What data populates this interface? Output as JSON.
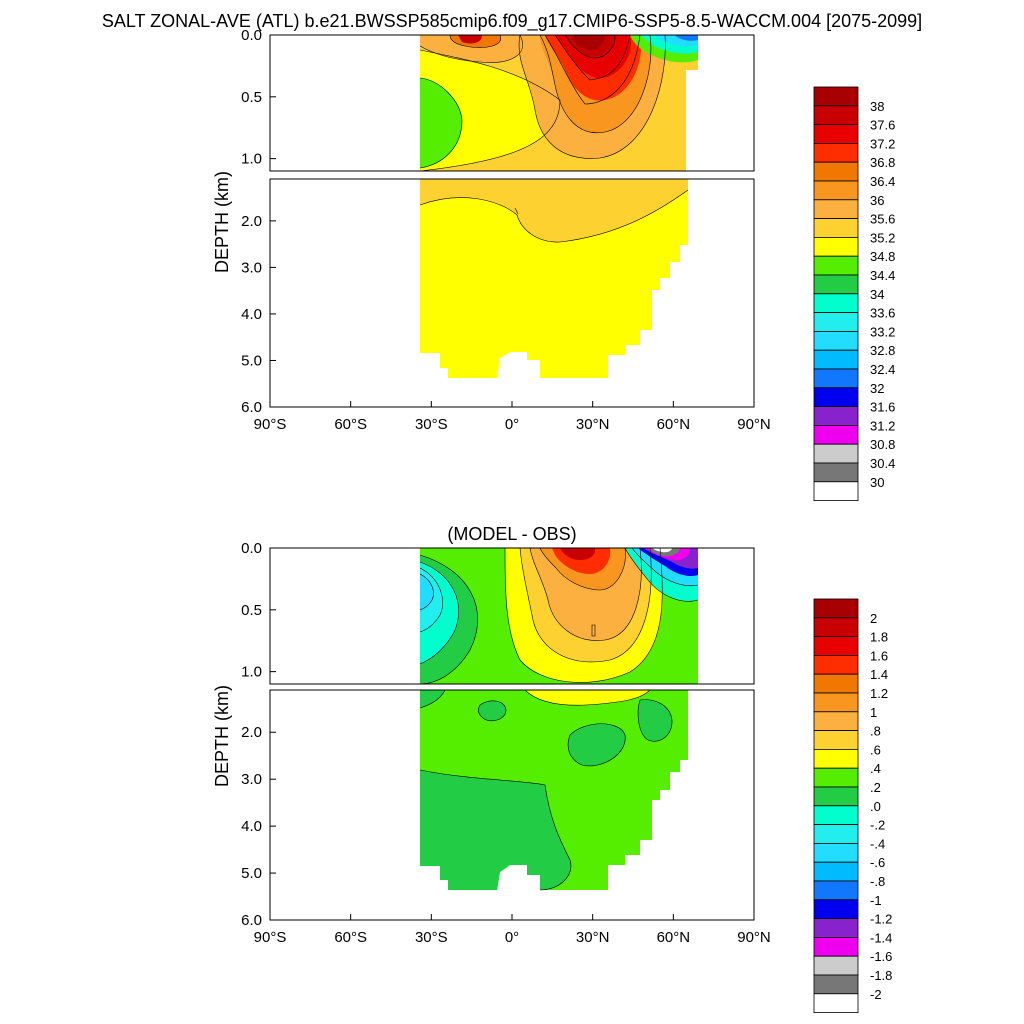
{
  "figure": {
    "title": "SALT ZONAL-AVE (ATL) b.e21.BWSSP585cmip6.f09_g17.CMIP6-SSP5-8.5-WACCM.004 [2075-2099]"
  },
  "chart_data": [
    {
      "type": "heatmap",
      "panel_title": "",
      "xlabel": "",
      "ylabel": "DEPTH (km)",
      "x_ticks": [
        "90°S",
        "60°S",
        "30°S",
        "0°",
        "30°N",
        "60°N",
        "90°N"
      ],
      "y_ticks_upper": [
        "0.0",
        "0.5",
        "1.0"
      ],
      "y_ticks_lower": [
        "2.0",
        "3.0",
        "4.0",
        "5.0",
        "6.0"
      ],
      "xlim": [
        -90,
        90
      ],
      "ylim_upper_km": [
        0,
        1.1
      ],
      "ylim_lower_km": [
        1.1,
        6.0
      ],
      "grid": false,
      "legend": "right colorbar",
      "colorbar_labels": [
        "38",
        "37.6",
        "37.2",
        "36.8",
        "36.4",
        "36",
        "35.6",
        "35.2",
        "34.8",
        "34.4",
        "34",
        "33.6",
        "33.2",
        "32.8",
        "32.4",
        "32",
        "31.6",
        "31.2",
        "30.8",
        "30.4",
        "30"
      ],
      "colorbar_colors": [
        "#a80000",
        "#c80000",
        "#e80000",
        "#ff2d00",
        "#f07800",
        "#f89620",
        "#fbb040",
        "#fdd12f",
        "#ffff00",
        "#55ee00",
        "#22cc44",
        "#00ffcc",
        "#22eeee",
        "#22ddff",
        "#00bbff",
        "#1177ff",
        "#0000ee",
        "#8822cc",
        "#ee00ee",
        "#cccccc",
        "#777777",
        "#ffffff"
      ],
      "field_description": "Salinity (psu) zonal average, Atlantic"
    },
    {
      "type": "heatmap",
      "panel_title": "(MODEL - OBS)",
      "xlabel": "",
      "ylabel": "DEPTH (km)",
      "x_ticks": [
        "90°S",
        "60°S",
        "30°S",
        "0°",
        "30°N",
        "60°N",
        "90°N"
      ],
      "y_ticks_upper": [
        "0.0",
        "0.5",
        "1.0"
      ],
      "y_ticks_lower": [
        "2.0",
        "3.0",
        "4.0",
        "5.0",
        "6.0"
      ],
      "xlim": [
        -90,
        90
      ],
      "ylim_upper_km": [
        0,
        1.1
      ],
      "ylim_lower_km": [
        1.1,
        6.0
      ],
      "grid": false,
      "legend": "right colorbar",
      "colorbar_labels": [
        "2",
        "1.8",
        "1.6",
        "1.4",
        "1.2",
        "1",
        ".8",
        ".6",
        ".4",
        ".2",
        ".0",
        "-.2",
        "-.4",
        "-.6",
        "-.8",
        "-1",
        "-1.2",
        "-1.4",
        "-1.6",
        "-1.8",
        "-2"
      ],
      "colorbar_colors": [
        "#a80000",
        "#c80000",
        "#e80000",
        "#ff2d00",
        "#f07800",
        "#f89620",
        "#fbb040",
        "#fdd12f",
        "#ffff00",
        "#55ee00",
        "#22cc44",
        "#00ffcc",
        "#22eeee",
        "#22ddff",
        "#00bbff",
        "#1177ff",
        "#0000ee",
        "#8822cc",
        "#ee00ee",
        "#cccccc",
        "#777777",
        "#ffffff"
      ]
    }
  ]
}
